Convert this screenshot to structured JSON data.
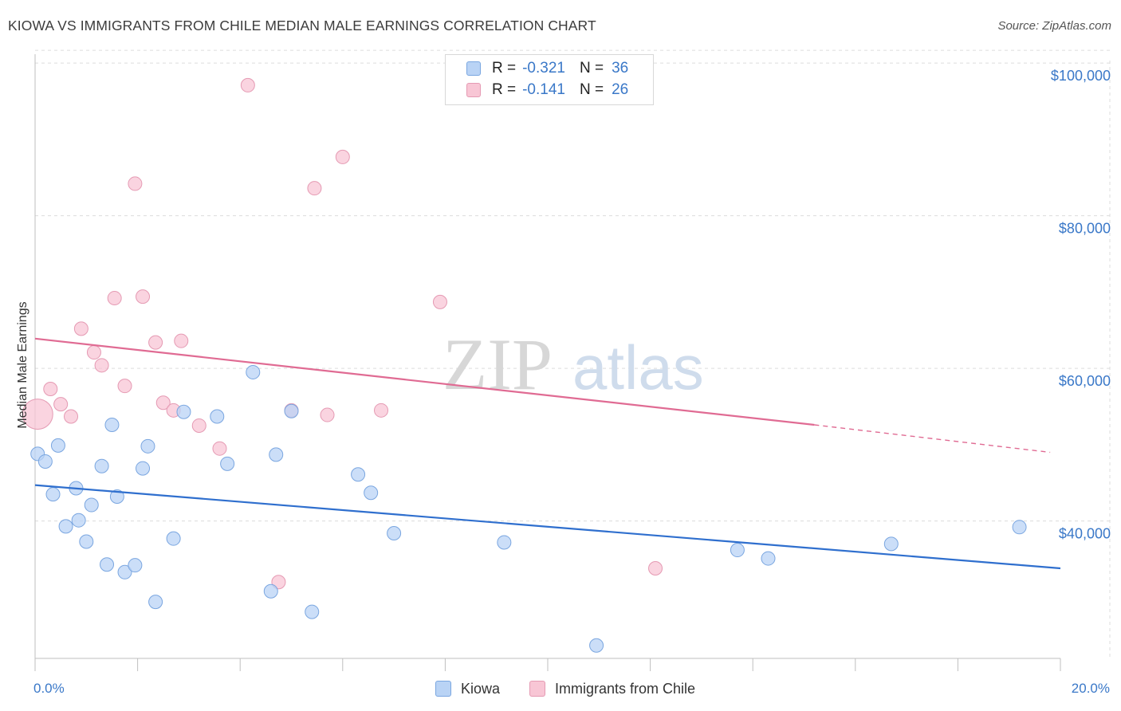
{
  "header": {
    "title": "KIOWA VS IMMIGRANTS FROM CHILE MEDIAN MALE EARNINGS CORRELATION CHART",
    "source": "Source: ZipAtlas.com"
  },
  "legend": {
    "rows": [
      {
        "r_label": "R =",
        "r_value": "-0.321",
        "n_label": "N =",
        "n_value": "36"
      },
      {
        "r_label": "R =",
        "r_value": "-0.141",
        "n_label": "N =",
        "n_value": "26"
      }
    ]
  },
  "watermark": {
    "zip": "ZIP",
    "atlas": "atlas"
  },
  "colors": {
    "kiowa_fill": "#b9d3f5",
    "kiowa_stroke": "#7aa6e0",
    "kiowa_line": "#2f6fce",
    "chile_fill": "#f8c6d5",
    "chile_stroke": "#e59ab3",
    "chile_line": "#e06b93",
    "tick_text": "#3a78c8",
    "grid": "#dcdcdc"
  },
  "chart_data": {
    "type": "scatter",
    "title": "KIOWA VS IMMIGRANTS FROM CHILE MEDIAN MALE EARNINGS CORRELATION CHART",
    "xlabel": "",
    "ylabel": "Median Male Earnings",
    "xlim": [
      0,
      20
    ],
    "ylim": [
      22000,
      102000
    ],
    "x_tick_labels": [
      {
        "value": 0,
        "label": "0.0%"
      },
      {
        "value": 20,
        "label": "20.0%"
      }
    ],
    "y_ticks": [
      {
        "value": 40000,
        "label": "$40,000"
      },
      {
        "value": 60000,
        "label": "$60,000"
      },
      {
        "value": 80000,
        "label": "$80,000"
      },
      {
        "value": 100000,
        "label": "$100,000"
      }
    ],
    "grid": true,
    "legend_position": "top-center",
    "series": [
      {
        "name": "Kiowa",
        "points": [
          [
            0.05,
            48800
          ],
          [
            0.2,
            47800
          ],
          [
            0.35,
            43500
          ],
          [
            0.45,
            49900
          ],
          [
            0.6,
            39300
          ],
          [
            0.8,
            44300
          ],
          [
            0.85,
            40100
          ],
          [
            1.0,
            37300
          ],
          [
            1.1,
            42100
          ],
          [
            1.3,
            47200
          ],
          [
            1.4,
            34300
          ],
          [
            1.5,
            52600
          ],
          [
            1.6,
            43200
          ],
          [
            1.75,
            33300
          ],
          [
            1.95,
            34200
          ],
          [
            2.1,
            46900
          ],
          [
            2.2,
            49800
          ],
          [
            2.35,
            29400
          ],
          [
            2.7,
            37700
          ],
          [
            2.9,
            54300
          ],
          [
            3.55,
            53700
          ],
          [
            3.75,
            47500
          ],
          [
            4.25,
            59500
          ],
          [
            4.6,
            30800
          ],
          [
            4.7,
            48700
          ],
          [
            5.0,
            54400
          ],
          [
            5.4,
            28100
          ],
          [
            6.3,
            46100
          ],
          [
            6.55,
            43700
          ],
          [
            7.0,
            38400
          ],
          [
            9.15,
            37200
          ],
          [
            10.95,
            23700
          ],
          [
            13.7,
            36200
          ],
          [
            14.3,
            35100
          ],
          [
            16.7,
            37000
          ],
          [
            19.2,
            39200
          ]
        ],
        "trend": {
          "x0": 0,
          "y0": 44700,
          "x1": 20,
          "y1": 33800
        }
      },
      {
        "name": "Immigrants from Chile",
        "points": [
          [
            0.05,
            54000
          ],
          [
            0.3,
            57300
          ],
          [
            0.5,
            55300
          ],
          [
            0.7,
            53700
          ],
          [
            0.9,
            65200
          ],
          [
            1.15,
            62100
          ],
          [
            1.3,
            60400
          ],
          [
            1.55,
            69200
          ],
          [
            1.75,
            57700
          ],
          [
            1.95,
            84200
          ],
          [
            2.1,
            69400
          ],
          [
            2.35,
            63400
          ],
          [
            2.5,
            55500
          ],
          [
            2.7,
            54500
          ],
          [
            2.85,
            63600
          ],
          [
            3.2,
            52500
          ],
          [
            3.6,
            49500
          ],
          [
            4.15,
            97100
          ],
          [
            4.75,
            32000
          ],
          [
            5.0,
            54500
          ],
          [
            5.45,
            83600
          ],
          [
            5.7,
            53900
          ],
          [
            6.0,
            87700
          ],
          [
            6.75,
            54500
          ],
          [
            7.9,
            68700
          ],
          [
            12.1,
            33800
          ]
        ],
        "trend": {
          "x0": 0,
          "y0": 63900,
          "x1": 15.2,
          "y1": 52600
        },
        "trend_dashed": {
          "x0": 15.2,
          "y0": 52600,
          "x1": 19.8,
          "y1": 49000
        }
      }
    ]
  }
}
